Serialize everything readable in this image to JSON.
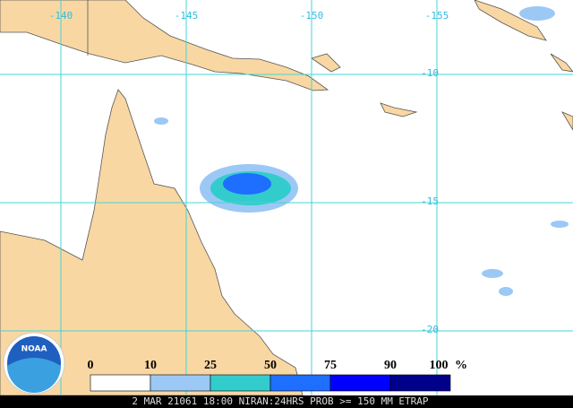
{
  "map": {
    "longitudes": [
      -140,
      -145,
      -150,
      -155
    ],
    "latitudes": [
      -10,
      -15,
      -20
    ],
    "legend": {
      "ticks": [
        0,
        10,
        25,
        50,
        75,
        90,
        100
      ],
      "unit": "%",
      "colors": [
        "#ffffff",
        "#9cc8f5",
        "#33cccc",
        "#1e6eff",
        "#0000ff",
        "#00008b"
      ]
    },
    "logo": "NOAA",
    "footer": "2 MAR 21061 18:00 NIRAN:24HRS PROB >= 150 MM ETRAP"
  }
}
